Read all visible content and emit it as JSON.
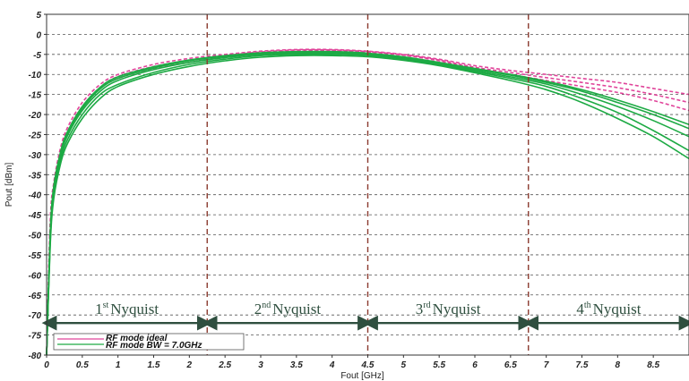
{
  "chart_data": {
    "type": "line",
    "xlabel": "Fout  [GHz]",
    "ylabel": "Pout  [dBm]",
    "xlim": [
      0,
      9.0
    ],
    "ylim": [
      -80,
      5
    ],
    "x_ticks": [
      0,
      0.5,
      1,
      1.5,
      2,
      2.5,
      3,
      3.5,
      4,
      4.5,
      5,
      5.5,
      6,
      6.5,
      7,
      7.5,
      8,
      8.5
    ],
    "x_tick_labels": [
      "0",
      "0.5",
      "1",
      "1.5",
      "2",
      "2.5",
      "3",
      "3.5",
      "4",
      "4.5",
      "5",
      "5.5",
      "6",
      "6.5",
      "7",
      "7.5",
      "8",
      "8.5"
    ],
    "y_ticks": [
      5,
      0,
      -5,
      -10,
      -15,
      -20,
      -25,
      -30,
      -35,
      -40,
      -45,
      -50,
      -55,
      -60,
      -65,
      -70,
      -75,
      -80
    ],
    "y_tick_labels": [
      "5",
      "0",
      "-5",
      "-10",
      "-15",
      "-20",
      "-25",
      "-30",
      "-35",
      "-40",
      "-45",
      "-50",
      "-55",
      "-60",
      "-65",
      "-70",
      "-75",
      "-80"
    ],
    "grid": "horizontal-dashed",
    "nyquist_boundaries": [
      2.25,
      4.5,
      6.75
    ],
    "regions": [
      {
        "label": "Nyquist",
        "ordinal": "1",
        "sup": "st",
        "x_start": 0,
        "x_end": 2.25
      },
      {
        "label": "Nyquist",
        "ordinal": "2",
        "sup": "nd",
        "x_start": 2.25,
        "x_end": 4.5
      },
      {
        "label": "Nyquist",
        "ordinal": "3",
        "sup": "rd",
        "x_start": 4.5,
        "x_end": 6.75
      },
      {
        "label": "Nyquist",
        "ordinal": "4",
        "sup": "th",
        "x_start": 6.75,
        "x_end": 9.0
      }
    ],
    "arrow_y": -72,
    "x": [
      0,
      0.05,
      0.1,
      0.2,
      0.3,
      0.5,
      0.75,
      1,
      1.5,
      2,
      2.5,
      3,
      3.5,
      4,
      4.5,
      5,
      5.5,
      6,
      6.5,
      7,
      7.5,
      8,
      8.5,
      9
    ],
    "series": [
      {
        "name": "RF mode ideal",
        "color": "#e0449a",
        "style": "dashed",
        "values": [
          -80,
          -47,
          -37,
          -28,
          -23,
          -17,
          -12.5,
          -10,
          -7.5,
          -6,
          -5,
          -4.2,
          -3.8,
          -3.8,
          -4.2,
          -5,
          -6.2,
          -7.8,
          -9,
          -10,
          -11,
          -12,
          -13.5,
          -15
        ]
      },
      {
        "name": "RF mode ideal",
        "color": "#e0449a",
        "style": "dashed",
        "values": [
          -80,
          -48,
          -38,
          -29,
          -24,
          -18,
          -13.5,
          -11,
          -8.5,
          -7,
          -5.6,
          -4.7,
          -4.2,
          -4.1,
          -4.4,
          -5.2,
          -6.6,
          -8.5,
          -10,
          -11.5,
          -13,
          -14.5,
          -16.5,
          -19
        ]
      },
      {
        "name": "RF mode ideal",
        "color": "#e0449a",
        "style": "dashed",
        "values": [
          -80,
          -48,
          -38,
          -29,
          -24,
          -18,
          -13.2,
          -10.5,
          -8,
          -6.5,
          -5.3,
          -4.4,
          -3.9,
          -3.9,
          -4.3,
          -5.1,
          -6.4,
          -8.2,
          -9.5,
          -10.8,
          -12,
          -13.3,
          -15,
          -17
        ]
      },
      {
        "name": "RF mode BW = 7.0GHz",
        "color": "#1daa44",
        "style": "solid",
        "values": [
          -80,
          -52,
          -40,
          -31,
          -26,
          -20,
          -15,
          -12.5,
          -9.5,
          -7.5,
          -6.2,
          -5.3,
          -5,
          -5,
          -5.3,
          -6.2,
          -7.6,
          -9.3,
          -11,
          -13,
          -16,
          -19.5,
          -24,
          -29
        ]
      },
      {
        "name": "RF mode BW = 7.0GHz",
        "color": "#1daa44",
        "style": "solid",
        "values": [
          -80,
          -51,
          -39,
          -30,
          -25,
          -19,
          -14.2,
          -11.5,
          -8.8,
          -7,
          -5.8,
          -5,
          -4.7,
          -4.7,
          -5.1,
          -6,
          -7.4,
          -9,
          -10.6,
          -12.4,
          -15,
          -18,
          -21.5,
          -25.5
        ]
      },
      {
        "name": "RF mode BW = 7.0GHz",
        "color": "#1daa44",
        "style": "solid",
        "values": [
          -80,
          -50,
          -38,
          -29.5,
          -24.5,
          -18.5,
          -13.6,
          -11,
          -8.4,
          -6.6,
          -5.5,
          -4.8,
          -4.5,
          -4.5,
          -4.9,
          -5.8,
          -7.2,
          -8.7,
          -10.2,
          -12,
          -14.2,
          -17,
          -20,
          -23.5
        ]
      },
      {
        "name": "RF mode BW = 7.0GHz",
        "color": "#1daa44",
        "style": "solid",
        "values": [
          -80,
          -53,
          -41,
          -32,
          -27,
          -21,
          -16,
          -13,
          -10,
          -8,
          -6.6,
          -5.7,
          -5.3,
          -5.3,
          -5.6,
          -6.5,
          -7.8,
          -9.6,
          -11.5,
          -13.8,
          -17,
          -21,
          -25.5,
          -31
        ]
      },
      {
        "name": "RF mode BW = 7.0GHz",
        "color": "#1daa44",
        "style": "solid",
        "values": [
          -80,
          -50,
          -38,
          -29,
          -24,
          -18,
          -13.2,
          -10.6,
          -8.1,
          -6.4,
          -5.3,
          -4.6,
          -4.3,
          -4.3,
          -4.7,
          -5.6,
          -7,
          -8.5,
          -10,
          -11.7,
          -13.8,
          -16.4,
          -19.3,
          -22.5
        ]
      }
    ],
    "legend": {
      "position": "bottom-left",
      "entries": [
        {
          "label": "RF mode ideal",
          "color": "#e0449a"
        },
        {
          "label": "RF mode BW = 7.0GHz",
          "color": "#1daa44"
        }
      ]
    }
  }
}
